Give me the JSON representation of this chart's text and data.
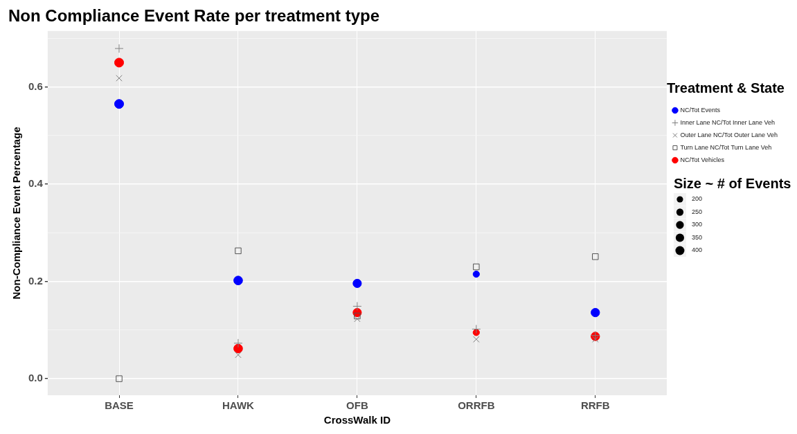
{
  "chart_data": {
    "type": "scatter",
    "title": "Non Compliance Event Rate per treatment type",
    "xlabel": "CrossWalk ID",
    "ylabel": "Non-Compliance Event Percentage",
    "legend_title": "Treatment & State",
    "categories": [
      "BASE",
      "HAWK",
      "OFB",
      "ORRFB",
      "RRFB"
    ],
    "series": [
      {
        "name": "NC/Tot Events",
        "type": "bubble",
        "color": "#0000ff",
        "marker": "circle",
        "values": [
          0.565,
          0.202,
          0.196,
          0.215,
          0.136
        ],
        "sizes": [
          400,
          380,
          350,
          200,
          360
        ]
      },
      {
        "name": "Inner Lane NC/Tot Inner Lane Veh",
        "color": "#808080",
        "marker": "cross",
        "values": [
          0.679,
          0.073,
          0.149,
          0.102,
          0.089
        ]
      },
      {
        "name": "Outer Lane NC/Tot Outer Lane Veh",
        "color": "#808080",
        "marker": "x",
        "values": [
          0.618,
          0.049,
          0.123,
          0.081,
          0.081
        ]
      },
      {
        "name": "Turn Lane NC/Tot Turn Lane Veh",
        "color": "#555555",
        "marker": "square",
        "values": [
          0,
          0.263,
          0.129,
          0.23,
          0.251
        ]
      },
      {
        "name": "NC/Tot Vehicles",
        "type": "bubble",
        "color": "#ff0000",
        "marker": "circle",
        "values": [
          0.65,
          0.062,
          0.136,
          0.095,
          0.087
        ],
        "sizes": [
          400,
          380,
          350,
          200,
          360
        ]
      }
    ],
    "size_legend": [
      200,
      250,
      300,
      350,
      400
    ],
    "annotations": [
      "Size ~ # of Events"
    ],
    "ylim": [
      -0.034,
      0.715
    ],
    "yticks": [
      {
        "value": 0,
        "label": "0.0"
      },
      {
        "value": 0.1,
        "label": null
      },
      0.2,
      {
        "value": 0.3,
        "label": null
      },
      0.4,
      {
        "value": 0.5,
        "label": null
      },
      0.6,
      {
        "value": 0.7,
        "label": null
      }
    ],
    "grid": true,
    "legend": "right"
  }
}
